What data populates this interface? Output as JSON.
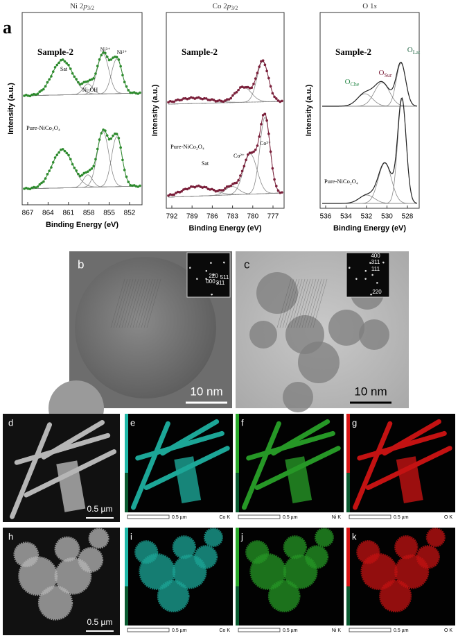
{
  "figure_label": "a",
  "xps": [
    {
      "title": {
        "main": "Ni 2",
        "ital": "p",
        "sub": "3/2"
      },
      "y_label": "Intensity (a.u.)",
      "x_label": "Binding Energy (eV)",
      "xticks": [
        867,
        864,
        861,
        858,
        855,
        852
      ],
      "sample_labels": [
        "Sample-2",
        "Pure-NiCo₂O₄"
      ],
      "peak_labels": [
        "Sat",
        "Ni-OH",
        "Ni³⁺",
        "Ni²⁺"
      ]
    },
    {
      "title": {
        "main": "Co 2",
        "ital": "p",
        "sub": "3/2"
      },
      "y_label": "Intensity (a.u.)",
      "x_label": "Binding Energy (eV)",
      "xticks": [
        792,
        789,
        786,
        783,
        780,
        777
      ],
      "sample_labels": [
        "Sample-2",
        "Pure-NiCo₂O₄"
      ],
      "peak_labels": [
        "Sat",
        "Co²⁺",
        "Co³⁺"
      ]
    },
    {
      "title": {
        "main": "O 1",
        "ital": "s"
      },
      "y_label": "Intensity (a.u.)",
      "x_label": "Binding Energy (eV)",
      "xticks": [
        536,
        534,
        532,
        530,
        528
      ],
      "sample_labels": [
        "Sample-2",
        "Pure-NiCo₂O₄"
      ],
      "peak_labels": [
        {
          "main": "O",
          "sub": "Che"
        },
        {
          "main": "O",
          "sub": "Sur"
        },
        {
          "main": "O",
          "sub": "Lat"
        }
      ]
    }
  ],
  "tem": [
    {
      "label": "b",
      "scale": "10 nm",
      "fft": [
        "220",
        "511",
        "000",
        "311"
      ]
    },
    {
      "label": "c",
      "scale": "10 nm",
      "fft": [
        "400",
        "311",
        "111",
        "220"
      ]
    }
  ],
  "eds": [
    [
      {
        "label": "d",
        "scale": "0.5 µm"
      },
      {
        "label": "e",
        "scale": "0.5 µm",
        "element": "Co K"
      },
      {
        "label": "f",
        "scale": "0.5 µm",
        "element": "Ni K"
      },
      {
        "label": "g",
        "scale": "0.5 µm",
        "element": "O K"
      }
    ],
    [
      {
        "label": "h",
        "scale": "0.5 µm"
      },
      {
        "label": "i",
        "scale": "0.5 µm",
        "element": "Co K"
      },
      {
        "label": "j",
        "scale": "0.5 µm",
        "element": "Ni K"
      },
      {
        "label": "k",
        "scale": "0.5 µm",
        "element": "O K"
      }
    ]
  ]
}
